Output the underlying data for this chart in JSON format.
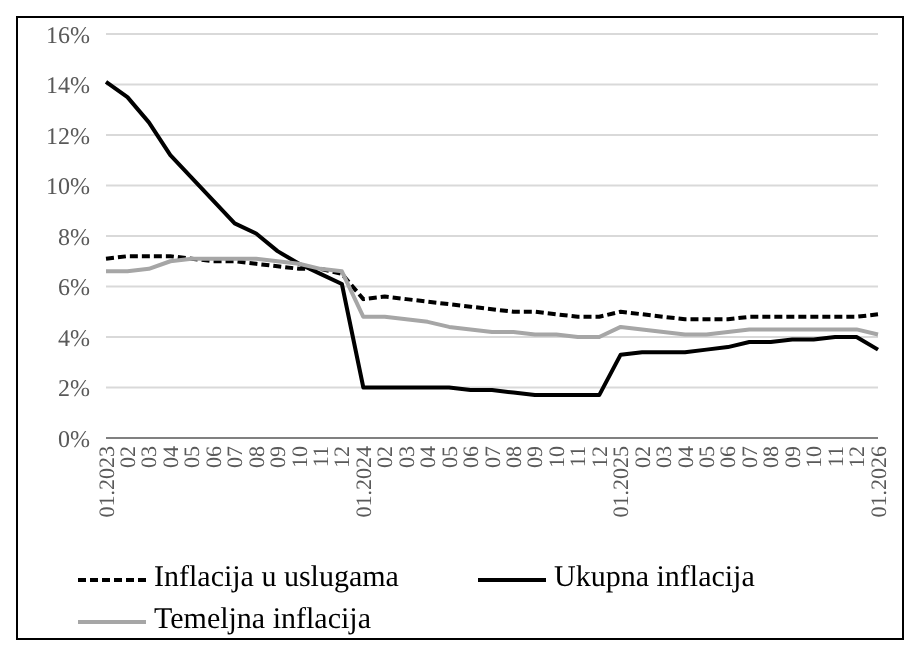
{
  "chart_data": {
    "type": "line",
    "categories": [
      "01.2023",
      "02",
      "03",
      "04",
      "05",
      "06",
      "07",
      "08",
      "09",
      "10",
      "11",
      "12",
      "01.2024",
      "02",
      "03",
      "04",
      "05",
      "06",
      "07",
      "08",
      "09",
      "10",
      "11",
      "12",
      "01.2025",
      "02",
      "03",
      "04",
      "05",
      "06",
      "07",
      "08",
      "09",
      "10",
      "11",
      "12",
      "01.2026"
    ],
    "series": [
      {
        "name": "Inflacija u uslugama",
        "color": "#000000",
        "line_style": "dashed",
        "values": [
          7.1,
          7.2,
          7.2,
          7.2,
          7.1,
          7.0,
          7.0,
          6.9,
          6.8,
          6.7,
          6.7,
          6.5,
          5.5,
          5.6,
          5.5,
          5.4,
          5.3,
          5.2,
          5.1,
          5.0,
          5.0,
          4.9,
          4.8,
          4.8,
          5.0,
          4.9,
          4.8,
          4.7,
          4.7,
          4.7,
          4.8,
          4.8,
          4.8,
          4.8,
          4.8,
          4.8,
          4.9
        ]
      },
      {
        "name": "Ukupna inflacija",
        "color": "#000000",
        "line_style": "solid",
        "values": [
          14.1,
          13.5,
          12.5,
          11.2,
          10.3,
          9.4,
          8.5,
          8.1,
          7.4,
          6.9,
          6.5,
          6.1,
          2.0,
          2.0,
          2.0,
          2.0,
          2.0,
          1.9,
          1.9,
          1.8,
          1.7,
          1.7,
          1.7,
          1.7,
          3.3,
          3.4,
          3.4,
          3.4,
          3.5,
          3.6,
          3.8,
          3.8,
          3.9,
          3.9,
          4.0,
          4.0,
          3.5
        ]
      },
      {
        "name": "Temeljna inflacija",
        "color": "#a6a6a6",
        "line_style": "solid",
        "values": [
          6.6,
          6.6,
          6.7,
          7.0,
          7.1,
          7.1,
          7.1,
          7.1,
          7.0,
          6.9,
          6.7,
          6.6,
          4.8,
          4.8,
          4.7,
          4.6,
          4.4,
          4.3,
          4.2,
          4.2,
          4.1,
          4.1,
          4.0,
          4.0,
          4.4,
          4.3,
          4.2,
          4.1,
          4.1,
          4.2,
          4.3,
          4.3,
          4.3,
          4.3,
          4.3,
          4.3,
          4.1
        ]
      }
    ],
    "ylim": [
      0,
      16
    ],
    "yticks": [
      {
        "value": 0,
        "label": "0%"
      },
      {
        "value": 2,
        "label": "2%"
      },
      {
        "value": 4,
        "label": "4%"
      },
      {
        "value": 6,
        "label": "6%"
      },
      {
        "value": 8,
        "label": "8%"
      },
      {
        "value": 10,
        "label": "10%"
      },
      {
        "value": 12,
        "label": "12%"
      },
      {
        "value": 14,
        "label": "14%"
      },
      {
        "value": 16,
        "label": "16%"
      }
    ],
    "grid": "y",
    "legend": "bottom",
    "marker": "none"
  }
}
